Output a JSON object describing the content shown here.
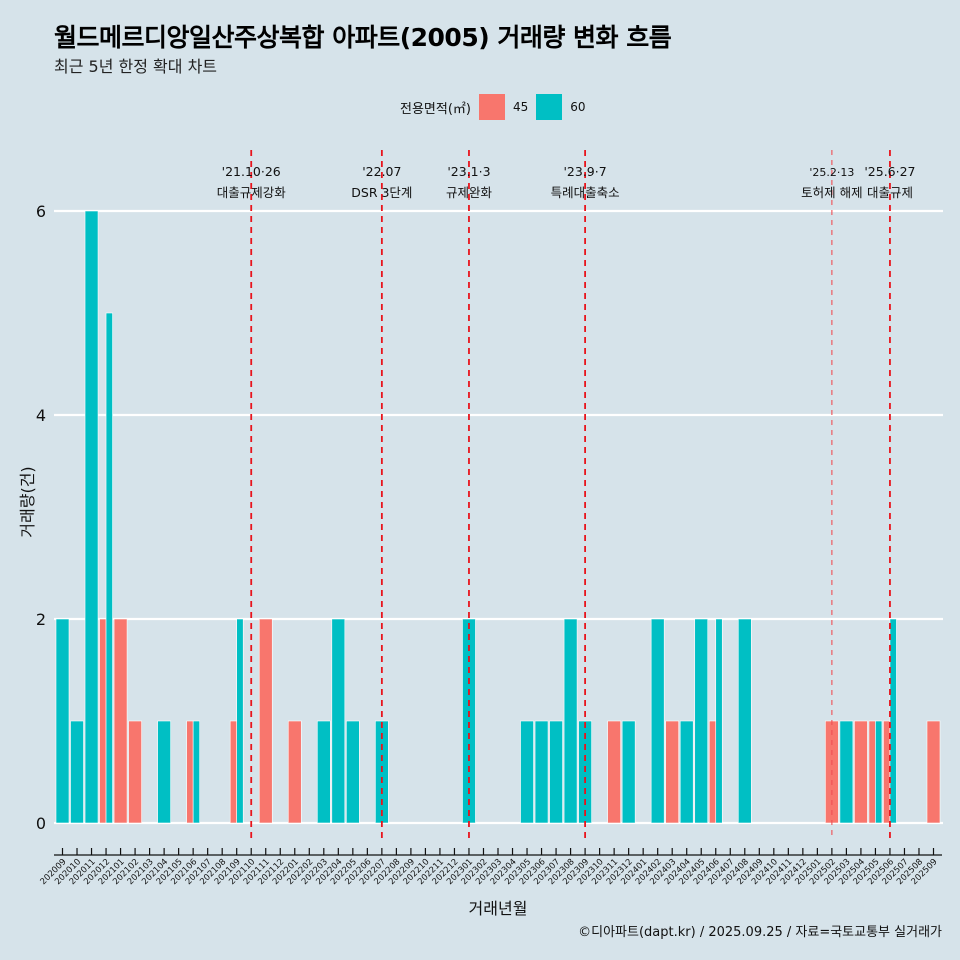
{
  "header": {
    "title": "월드메르디앙일산주상복합 아파트(2005) 거래량 변화 흐름",
    "subtitle": "최근 5년 한정 확대 차트"
  },
  "legend": {
    "title": "전용면적(㎡)",
    "items": [
      {
        "label": "45",
        "color": "#f8766d"
      },
      {
        "label": "60",
        "color": "#00bfc4"
      }
    ]
  },
  "caption": "©디아파트(dapt.kr) / 2025.09.25 / 자료=국토교통부 실거래가",
  "chart_data": {
    "type": "bar",
    "title": "월드메르디앙일산주상복합 아파트(2005) 거래량 변화 흐름",
    "subtitle": "최근 5년 한정 확대 차트",
    "xlabel": "거래년월",
    "ylabel": "거래량(건)",
    "ylim": [
      0,
      6
    ],
    "yticks": [
      0,
      2,
      4,
      6
    ],
    "grid": "horizontal",
    "legend_position": "top",
    "categories": [
      "202009",
      "202010",
      "202011",
      "202012",
      "202101",
      "202102",
      "202103",
      "202104",
      "202105",
      "202106",
      "202107",
      "202108",
      "202109",
      "202110",
      "202111",
      "202112",
      "202201",
      "202202",
      "202203",
      "202204",
      "202205",
      "202206",
      "202207",
      "202208",
      "202209",
      "202210",
      "202211",
      "202212",
      "202301",
      "202302",
      "202303",
      "202304",
      "202305",
      "202306",
      "202307",
      "202308",
      "202309",
      "202310",
      "202311",
      "202312",
      "202401",
      "202402",
      "202403",
      "202404",
      "202405",
      "202406",
      "202407",
      "202408",
      "202409",
      "202410",
      "202411",
      "202412",
      "202501",
      "202502",
      "202503",
      "202504",
      "202505",
      "202506",
      "202507",
      "202508",
      "202509"
    ],
    "series": [
      {
        "name": "45",
        "color": "#f8766d",
        "values": [
          0,
          0,
          0,
          2,
          2,
          1,
          0,
          0,
          0,
          1,
          0,
          0,
          1,
          0,
          2,
          0,
          1,
          0,
          0,
          0,
          0,
          0,
          0,
          0,
          0,
          0,
          0,
          0,
          0,
          0,
          0,
          0,
          0,
          0,
          0,
          0,
          0,
          0,
          1,
          0,
          0,
          0,
          1,
          0,
          0,
          1,
          0,
          0,
          0,
          0,
          0,
          0,
          0,
          1,
          0,
          1,
          1,
          1,
          0,
          0,
          1
        ]
      },
      {
        "name": "60",
        "color": "#00bfc4",
        "values": [
          2,
          1,
          6,
          5,
          0,
          0,
          0,
          1,
          0,
          1,
          0,
          0,
          2,
          0,
          0,
          0,
          0,
          0,
          1,
          2,
          1,
          0,
          1,
          0,
          0,
          0,
          0,
          0,
          2,
          0,
          0,
          0,
          1,
          1,
          1,
          2,
          1,
          0,
          0,
          1,
          0,
          2,
          0,
          1,
          2,
          2,
          0,
          2,
          0,
          0,
          0,
          0,
          0,
          0,
          1,
          0,
          1,
          2,
          0,
          0,
          0
        ]
      }
    ],
    "annotations": [
      {
        "month": "202110",
        "date": "'21.10·26",
        "label": "대출규제강화",
        "style": "strong"
      },
      {
        "month": "202207",
        "date": "'22.07",
        "label": "DSR 3단계",
        "style": "strong"
      },
      {
        "month": "202301",
        "date": "'23.1·3",
        "label": "규제완화",
        "style": "strong"
      },
      {
        "month": "202309",
        "date": "'23.9·7",
        "label": "특례대출축소",
        "style": "strong"
      },
      {
        "month": "202502",
        "date": "'25.2·13",
        "label": "토허제 해제",
        "style": "light"
      },
      {
        "month": "202506",
        "date": "'25.6·27",
        "label": "대출규제",
        "style": "strong"
      }
    ]
  }
}
